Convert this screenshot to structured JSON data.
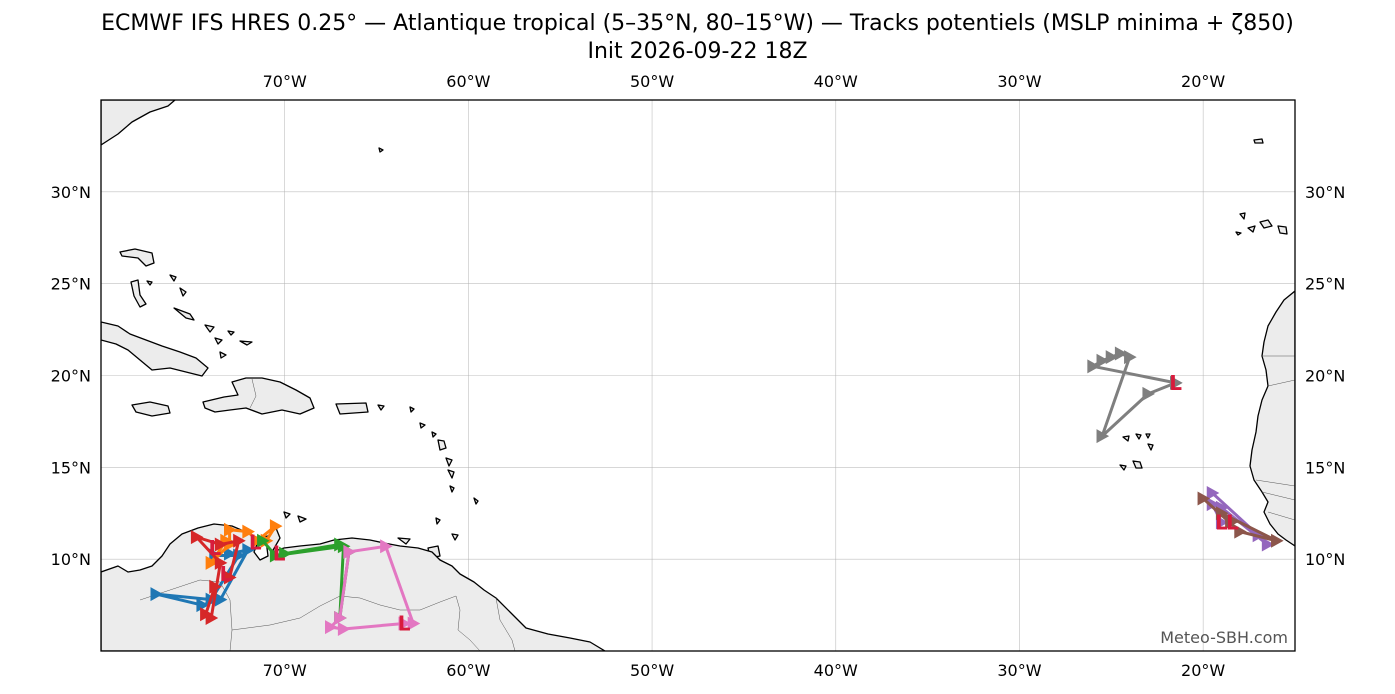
{
  "title_line1": "ECMWF IFS HRES 0.25° — Atlantique tropical (5–35°N, 80–15°W) — Tracks potentiels (MSLP minima + ζ850)",
  "title_line2": "Init 2026-09-22 18Z",
  "watermark": "Meteo-SBH.com",
  "map": {
    "lon_range": [
      -80,
      -15
    ],
    "lat_range": [
      5,
      35
    ],
    "lon_ticks": [
      {
        "lon": -70,
        "label": "70°W"
      },
      {
        "lon": -60,
        "label": "60°W"
      },
      {
        "lon": -50,
        "label": "50°W"
      },
      {
        "lon": -40,
        "label": "40°W"
      },
      {
        "lon": -30,
        "label": "30°W"
      },
      {
        "lon": -20,
        "label": "20°W"
      }
    ],
    "lat_ticks": [
      {
        "lat": 30,
        "label": "30°N"
      },
      {
        "lat": 25,
        "label": "25°N"
      },
      {
        "lat": 20,
        "label": "20°N"
      },
      {
        "lat": 15,
        "label": "15°N"
      },
      {
        "lat": 10,
        "label": "10°N"
      }
    ],
    "grid": true,
    "land_color": "#ececec",
    "low_marker": {
      "text": "L",
      "color": "#d81b3c"
    }
  },
  "chart_data": {
    "type": "scatter",
    "tracks": [
      {
        "color": "#1f77b4",
        "points": [
          [
            -73.0,
            10.3
          ],
          [
            -72.0,
            10.5
          ],
          [
            -73.5,
            7.8
          ],
          [
            -74.5,
            7.5
          ],
          [
            -77.0,
            8.1
          ],
          [
            -74.0,
            7.8
          ],
          [
            -72.5,
            10.2
          ],
          [
            -73.8,
            10.2
          ]
        ]
      },
      {
        "color": "#ff7f0e",
        "points": [
          [
            -71.0,
            11.0
          ],
          [
            -70.5,
            11.8
          ],
          [
            -71.5,
            11.0
          ],
          [
            -72.0,
            11.5
          ],
          [
            -73.0,
            11.6
          ],
          [
            -73.0,
            10.8
          ],
          [
            -74.0,
            9.8
          ],
          [
            -73.2,
            11.0
          ]
        ]
      },
      {
        "color": "#d62728",
        "points": [
          [
            -73.8,
            8.5
          ],
          [
            -74.3,
            7.0
          ],
          [
            -74.0,
            6.8
          ],
          [
            -73.5,
            9.8
          ],
          [
            -74.8,
            11.2
          ],
          [
            -73.5,
            10.8
          ],
          [
            -72.5,
            11.0
          ],
          [
            -73.0,
            9.0
          ]
        ]
      },
      {
        "color": "#2ca02c",
        "points": [
          [
            -70.0,
            10.3
          ],
          [
            -67.0,
            10.8
          ],
          [
            -66.5,
            10.4
          ],
          [
            -67.0,
            6.8
          ],
          [
            -66.8,
            10.7
          ],
          [
            -70.5,
            10.2
          ],
          [
            -71.2,
            11.0
          ]
        ]
      },
      {
        "color": "#e377c2",
        "points": [
          [
            -63.0,
            6.5
          ],
          [
            -64.5,
            10.7
          ],
          [
            -66.5,
            10.4
          ],
          [
            -67.0,
            6.8
          ],
          [
            -67.5,
            6.3
          ],
          [
            -66.8,
            6.2
          ],
          [
            -63.5,
            6.5
          ]
        ]
      },
      {
        "color": "#7f7f7f",
        "points": [
          [
            -21.5,
            19.6
          ],
          [
            -23.0,
            19.0
          ],
          [
            -25.5,
            16.7
          ],
          [
            -24.0,
            21.0
          ],
          [
            -24.5,
            21.2
          ],
          [
            -25.0,
            21.0
          ],
          [
            -25.5,
            20.8
          ],
          [
            -26.0,
            20.5
          ],
          [
            -21.5,
            19.6
          ]
        ]
      },
      {
        "color": "#9467bd",
        "points": [
          [
            -19.5,
            13.6
          ],
          [
            -17.0,
            11.3
          ],
          [
            -16.5,
            10.8
          ],
          [
            -19.0,
            12.8
          ],
          [
            -19.5,
            13.0
          ],
          [
            -19.0,
            12.0
          ]
        ]
      },
      {
        "color": "#8c564b",
        "points": [
          [
            -20.0,
            13.3
          ],
          [
            -18.0,
            11.5
          ],
          [
            -16.0,
            11.0
          ],
          [
            -19.0,
            12.5
          ],
          [
            -18.5,
            12.0
          ]
        ]
      }
    ],
    "lows": [
      {
        "lon": -21.5,
        "lat": 19.6
      },
      {
        "lon": -19.0,
        "lat": 12.0
      },
      {
        "lon": -18.4,
        "lat": 12.0
      },
      {
        "lon": -63.5,
        "lat": 6.5
      },
      {
        "lon": -70.3,
        "lat": 10.3
      },
      {
        "lon": -73.2,
        "lat": 9.2
      },
      {
        "lon": -71.6,
        "lat": 10.9
      },
      {
        "lon": -73.8,
        "lat": 10.6
      }
    ]
  }
}
